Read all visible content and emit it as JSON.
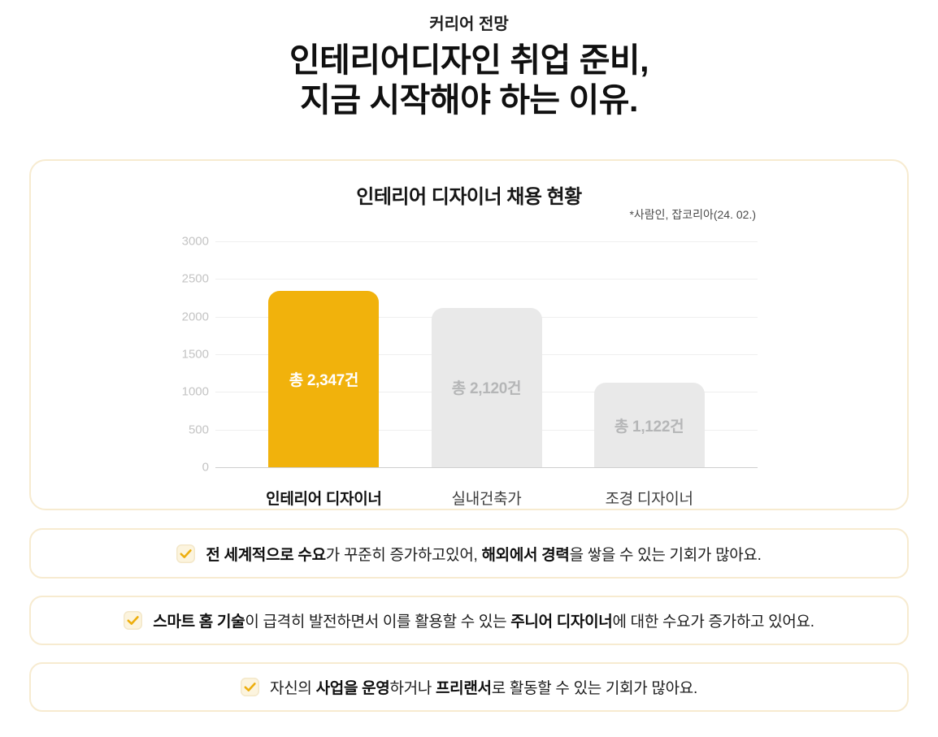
{
  "page": {
    "eyebrow": "커리어 전망",
    "title_line1": "인테리어디자인 취업 준비,",
    "title_line2": "지금 시작해야 하는 이유."
  },
  "chart_card": {
    "title": "인테리어 디자이너 채용 현황",
    "source": "*사람인, 잡코리아(24. 02.)"
  },
  "chart_data": {
    "type": "bar",
    "title": "인테리어 디자이너 채용 현황",
    "source_note": "*사람인, 잡코리아(24. 02.)",
    "categories": [
      "인테리어 디자이너",
      "실내건축가",
      "조경 디자이너"
    ],
    "values": [
      2347,
      2120,
      1122
    ],
    "bar_labels": [
      "총 2,347건",
      "총 2,120건",
      "총 1,122건"
    ],
    "highlight_index": 0,
    "y_ticks": [
      0,
      500,
      1000,
      1500,
      2000,
      2500,
      3000
    ],
    "ylim": [
      0,
      3000
    ],
    "grid": true,
    "legend": false,
    "colors": {
      "highlight_bar": "#F1B20C",
      "default_bar": "#E9E9E9",
      "highlight_label": "#FFFFFF",
      "default_label": "#B5B6B7",
      "axis_tick": "#C4C4C4",
      "gridline": "#EFEFEF",
      "zero_line": "#CFCFCF"
    }
  },
  "benefits": [
    {
      "parts": [
        {
          "text": "전 세계적으로 수요",
          "bold": true
        },
        {
          "text": "가 꾸준히 증가하고있어, ",
          "bold": false
        },
        {
          "text": "해외에서 경력",
          "bold": true
        },
        {
          "text": "을 쌓을 수 있는 기회가 많아요.",
          "bold": false
        }
      ]
    },
    {
      "parts": [
        {
          "text": "스마트 홈 기술",
          "bold": true
        },
        {
          "text": "이 급격히 발전하면서 이를 활용할 수 있는 ",
          "bold": false
        },
        {
          "text": "주니어 디자이너",
          "bold": true
        },
        {
          "text": "에 대한 수요가 증가하고 있어요.",
          "bold": false
        }
      ]
    },
    {
      "parts": [
        {
          "text": "자신의 ",
          "bold": false
        },
        {
          "text": "사업을 운영",
          "bold": true
        },
        {
          "text": "하거나 ",
          "bold": false
        },
        {
          "text": "프리랜서",
          "bold": true
        },
        {
          "text": "로 활동할 수 있는 기회가 많아요.",
          "bold": false
        }
      ]
    }
  ],
  "theme": {
    "accent": "#F1B20C",
    "card_border": "#F7EBD0",
    "checkbox_fill": "#FCF4DE",
    "checkbox_border": "#F3E7C8",
    "check_stroke": "#EDAE0D"
  }
}
